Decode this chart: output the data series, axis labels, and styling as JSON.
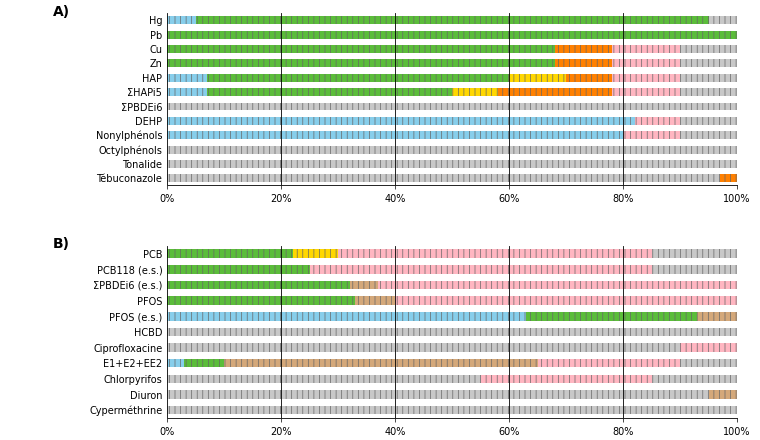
{
  "panel_A_label": "A)",
  "panel_B_label": "B)",
  "categories_A": [
    "Hg",
    "Pb",
    "Cu",
    "Zn",
    "HAP",
    "ΣHAPi5",
    "ΣPBDEi6",
    "DEHP",
    "Nonylphénols",
    "Octylphénols",
    "Tonalide",
    "Tébuconazole"
  ],
  "categories_B": [
    "PCB",
    "PCB118 (e.s.)",
    "ΣPBDEi6 (e.s.)",
    "PFOS",
    "PFOS (e.s.)",
    "HCBD",
    "Ciprofloxacine",
    "E1+E2+EE2",
    "Chlorpyrifos",
    "Diuron",
    "Cyperméthrine"
  ],
  "data_A": {
    "Hg": [
      5,
      90,
      0,
      0,
      0,
      5
    ],
    "Pb": [
      0,
      100,
      0,
      0,
      0,
      0
    ],
    "Cu": [
      0,
      68,
      0,
      10,
      12,
      10
    ],
    "Zn": [
      0,
      68,
      0,
      10,
      12,
      10
    ],
    "HAP": [
      7,
      53,
      10,
      8,
      12,
      10
    ],
    "ΣHAPi5": [
      7,
      43,
      8,
      20,
      12,
      10
    ],
    "ΣPBDEi6": [
      100,
      0,
      0,
      0,
      0,
      0
    ],
    "DEHP": [
      82,
      0,
      0,
      0,
      8,
      10
    ],
    "Nonylphénols": [
      80,
      0,
      0,
      0,
      10,
      10
    ],
    "Octylphénols": [
      100,
      0,
      0,
      0,
      0,
      0
    ],
    "Tonalide": [
      100,
      0,
      0,
      0,
      0,
      0
    ],
    "Tébuconazole": [
      97,
      0,
      0,
      3,
      0,
      0
    ]
  },
  "data_B": {
    "PCB": [
      0,
      22,
      8,
      0,
      55,
      15
    ],
    "PCB118 (e.s.)": [
      0,
      25,
      0,
      0,
      60,
      15
    ],
    "ΣPBDEi6 (e.s.)": [
      0,
      32,
      0,
      5,
      63,
      0
    ],
    "PFOS": [
      0,
      33,
      0,
      7,
      60,
      0
    ],
    "PFOS (e.s.)": [
      63,
      30,
      0,
      7,
      0,
      0
    ],
    "HCBD": [
      100,
      0,
      0,
      0,
      0,
      0
    ],
    "Ciprofloxacine": [
      90,
      0,
      0,
      0,
      10,
      0
    ],
    "E1+E2+EE2": [
      3,
      7,
      0,
      55,
      25,
      10
    ],
    "Chlorpyrifos": [
      55,
      0,
      0,
      0,
      30,
      15
    ],
    "Diuron": [
      95,
      0,
      0,
      5,
      0,
      0
    ],
    "Cyperméthrine": [
      100,
      0,
      0,
      0,
      0,
      0
    ]
  },
  "c_green": "#5BBD3A",
  "c_lblue": "#87CEEB",
  "c_yellow": "#FFD700",
  "c_orange": "#FF8000",
  "c_pink": "#FFB6C1",
  "c_tan": "#D4A87A",
  "c_gray": "#C8C8C8",
  "c_white": "#FFFFFF",
  "hatch_color": "#555555",
  "bar_height": 0.55,
  "figsize": [
    7.6,
    4.4
  ],
  "dpi": 100
}
